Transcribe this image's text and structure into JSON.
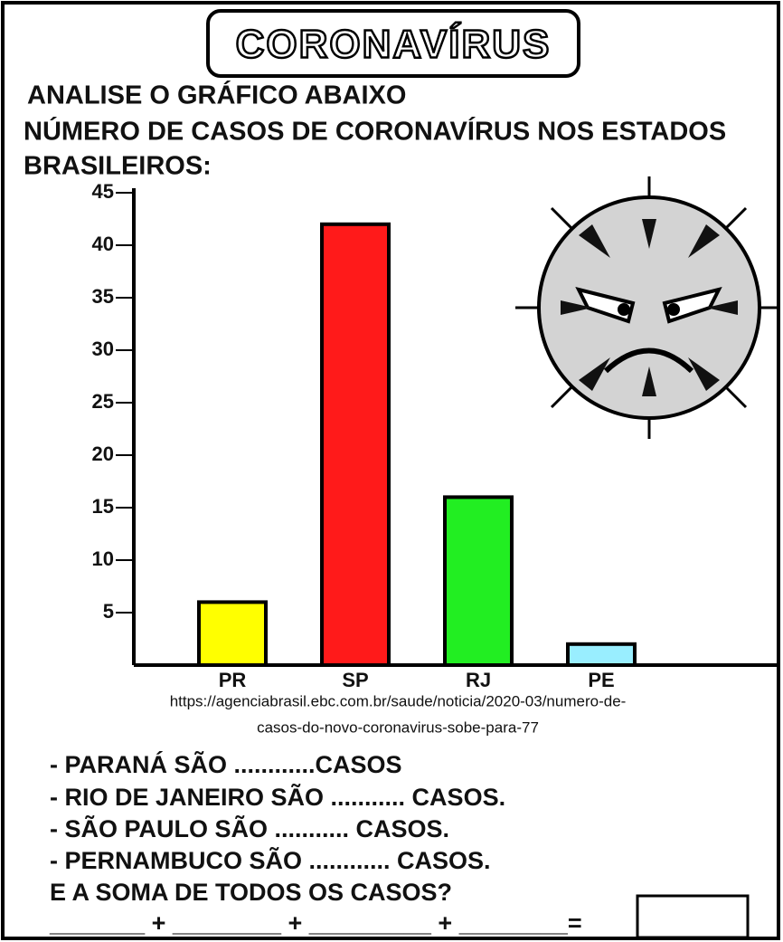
{
  "header": {
    "title": "CORONAVÍRUS",
    "instruction": "ANALISE O GRÁFICO ABAIXO",
    "subtitle_lines": [
      "NÚMERO DE CASOS DE CORONAVÍRUS NOS ESTADOS",
      "BRASILEIROS:"
    ]
  },
  "chart_data": {
    "type": "bar",
    "categories": [
      "PR",
      "SP",
      "RJ",
      "PE"
    ],
    "values": [
      6,
      42,
      16,
      2
    ],
    "colors": [
      "#ffff00",
      "#ff1a1a",
      "#22ee22",
      "#99eeff"
    ],
    "ylim": [
      0,
      45
    ],
    "yticks": [
      5,
      10,
      15,
      20,
      25,
      30,
      35,
      40,
      45
    ],
    "grid": false
  },
  "source_lines": [
    "https://agenciabrasil.ebc.com.br/saude/noticia/2020-03/numero-de-",
    "casos-do-novo-coronavirus-sobe-para-77"
  ],
  "questions": [
    "- PARANÁ SÃO ............CASOS",
    "- RIO DE JANEIRO SÃO ........... CASOS.",
    "- SÃO PAULO SÃO ........... CASOS.",
    "- PERNAMBUCO  SÃO   ............ CASOS.",
    "E A SOMA DE TODOS OS CASOS?"
  ],
  "sum_line": "_______ + ________ + _________ + ________="
}
